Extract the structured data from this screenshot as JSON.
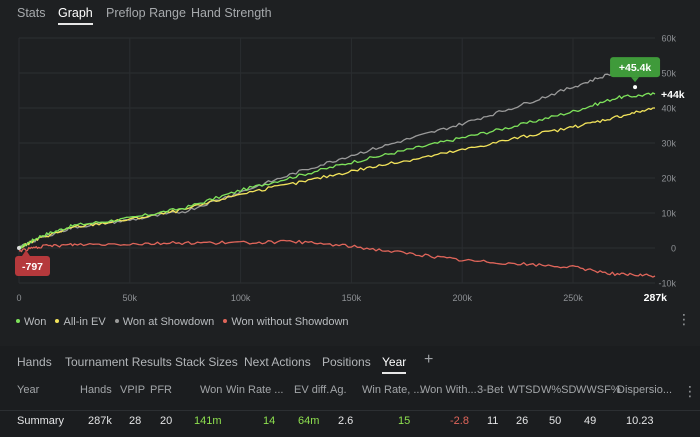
{
  "tabs": [
    "Stats",
    "Graph",
    "Preflop Range",
    "Hand Strength"
  ],
  "active_tab": "Graph",
  "chart_data": {
    "type": "line",
    "x_ticks": [
      "0",
      "50k",
      "100k",
      "150k",
      "200k",
      "250k",
      "287k"
    ],
    "y_ticks": [
      "60k",
      "50k",
      "40k",
      "30k",
      "20k",
      "10k",
      "0",
      "-10k"
    ],
    "xlim": [
      0,
      287000
    ],
    "ylim": [
      -10000,
      60000
    ],
    "grid": true,
    "series": [
      {
        "name": "Won",
        "color": "#7ee25b",
        "x": [
          0,
          10000,
          25000,
          50000,
          75000,
          100000,
          125000,
          150000,
          175000,
          200000,
          225000,
          250000,
          270000,
          287000
        ],
        "y": [
          0,
          3500,
          6500,
          8500,
          11500,
          16500,
          20500,
          24500,
          28000,
          31500,
          35000,
          39000,
          43000,
          44000
        ]
      },
      {
        "name": "All-in EV",
        "color": "#f2e35b",
        "x": [
          0,
          10000,
          25000,
          50000,
          75000,
          100000,
          125000,
          150000,
          175000,
          200000,
          225000,
          250000,
          270000,
          287000
        ],
        "y": [
          0,
          3000,
          6000,
          8200,
          11000,
          15500,
          18500,
          22000,
          25000,
          28000,
          31500,
          34500,
          37500,
          40000
        ]
      },
      {
        "name": "Won at Showdown",
        "color": "#9a9a9a",
        "x": [
          0,
          10000,
          25000,
          50000,
          75000,
          100000,
          125000,
          150000,
          175000,
          200000,
          225000,
          250000,
          270000,
          280000,
          287000
        ],
        "y": [
          0,
          3000,
          6000,
          8000,
          10500,
          16000,
          21500,
          26500,
          31000,
          35500,
          40500,
          46000,
          50500,
          53000,
          50000
        ]
      },
      {
        "name": "Won without Showdown",
        "color": "#e0655a",
        "x": [
          0,
          10000,
          25000,
          50000,
          75000,
          100000,
          125000,
          150000,
          175000,
          200000,
          225000,
          250000,
          270000,
          287000
        ],
        "y": [
          -797,
          400,
          1000,
          1200,
          1500,
          1500,
          1800,
          500,
          -1500,
          -3500,
          -4500,
          -5500,
          -7500,
          -8000
        ]
      }
    ],
    "annotations": [
      {
        "label": "+45.4k",
        "x": 278000,
        "y": 45400,
        "color": "#3f9a3a"
      },
      {
        "label": "+44k",
        "x": 287000,
        "y": 44000,
        "color": "#ffffff"
      },
      {
        "label": "-797",
        "x": 0,
        "y": -797,
        "color": "#b5393c"
      }
    ]
  },
  "legend": [
    "Won",
    "All-in EV",
    "Won at Showdown",
    "Won without Showdown"
  ],
  "legend_colors": [
    "#7ee25b",
    "#f2e35b",
    "#9a9a9a",
    "#e0655a"
  ],
  "bottom_tabs": [
    "Hands",
    "Tournament Results",
    "Stack Sizes",
    "Next Actions",
    "Positions",
    "Year"
  ],
  "active_bottom_tab": "Year",
  "add_tab_label": "+",
  "table": {
    "headers": [
      "Year",
      "Hands",
      "VPIP",
      "PFR",
      "Won",
      "Win Rate ...",
      "EV diff.",
      "Ag.",
      "Win Rate, ...",
      "Won With...",
      "3-Bet",
      "WTSD",
      "W%SD",
      "WWSF%",
      "Dispersio..."
    ],
    "row": [
      "Summary",
      "287k",
      "28",
      "20",
      "141m",
      "14",
      "64m",
      "2.6",
      "15",
      "-2.8",
      "11",
      "26",
      "50",
      "49",
      "10.23"
    ]
  }
}
